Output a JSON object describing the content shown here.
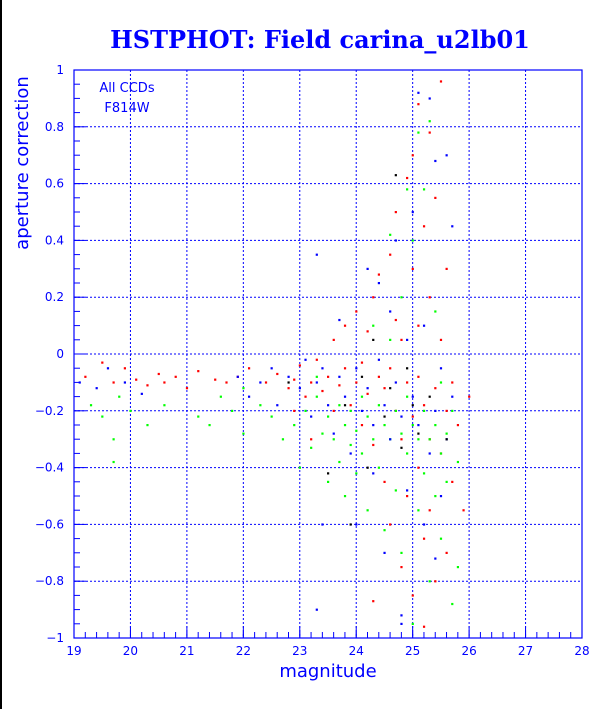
{
  "chart_data": {
    "type": "scatter",
    "title": "HSTPHOT: Field carina_u2lb01",
    "xlabel": "magnitude",
    "ylabel": "aperture correction",
    "xlim": [
      19,
      28
    ],
    "ylim": [
      -1,
      1
    ],
    "xticks": [
      "19",
      "20",
      "21",
      "22",
      "23",
      "24",
      "25",
      "26",
      "27",
      "28"
    ],
    "yticks": [
      "-1",
      "-0.8",
      "-0.6",
      "-0.4",
      "-0.2",
      "0",
      "0.2",
      "0.4",
      "0.6",
      "0.8",
      "1"
    ],
    "grid": true,
    "annotations": [
      "All CCDs",
      "F814W"
    ],
    "series": [
      {
        "name": "red",
        "color": "#ff0000",
        "points": [
          [
            19.2,
            -0.08
          ],
          [
            19.5,
            -0.03
          ],
          [
            19.7,
            -0.1
          ],
          [
            19.9,
            -0.05
          ],
          [
            20.1,
            -0.09
          ],
          [
            20.3,
            -0.11
          ],
          [
            20.5,
            -0.07
          ],
          [
            20.6,
            -0.1
          ],
          [
            20.8,
            -0.08
          ],
          [
            21.0,
            -0.12
          ],
          [
            21.2,
            -0.06
          ],
          [
            21.5,
            -0.09
          ],
          [
            21.7,
            -0.1
          ],
          [
            21.9,
            -0.08
          ],
          [
            22.1,
            -0.05
          ],
          [
            22.4,
            -0.1
          ],
          [
            22.6,
            -0.07
          ],
          [
            22.8,
            -0.12
          ],
          [
            22.9,
            -0.09
          ],
          [
            23.0,
            -0.04
          ],
          [
            23.1,
            -0.15
          ],
          [
            23.2,
            -0.1
          ],
          [
            23.3,
            -0.02
          ],
          [
            23.4,
            -0.13
          ],
          [
            23.5,
            -0.08
          ],
          [
            23.6,
            0.05
          ],
          [
            23.6,
            -0.2
          ],
          [
            23.7,
            -0.11
          ],
          [
            23.8,
            -0.05
          ],
          [
            23.8,
            0.1
          ],
          [
            23.9,
            -0.18
          ],
          [
            24.0,
            -0.1
          ],
          [
            24.0,
            0.15
          ],
          [
            24.1,
            -0.03
          ],
          [
            24.1,
            -0.25
          ],
          [
            24.2,
            0.08
          ],
          [
            24.2,
            -0.14
          ],
          [
            24.3,
            -0.32
          ],
          [
            24.3,
            0.2
          ],
          [
            24.4,
            -0.08
          ],
          [
            24.4,
            0.28
          ],
          [
            24.5,
            -0.45
          ],
          [
            24.5,
            -0.12
          ],
          [
            24.6,
            0.35
          ],
          [
            24.6,
            -0.6
          ],
          [
            24.6,
            -0.05
          ],
          [
            24.7,
            0.5
          ],
          [
            24.7,
            -0.2
          ],
          [
            24.7,
            0.12
          ],
          [
            24.8,
            -0.75
          ],
          [
            24.8,
            0.05
          ],
          [
            24.8,
            -0.3
          ],
          [
            24.9,
            0.62
          ],
          [
            24.9,
            -0.1
          ],
          [
            24.9,
            -0.5
          ],
          [
            25.0,
            0.3
          ],
          [
            25.0,
            -0.22
          ],
          [
            25.0,
            -0.85
          ],
          [
            25.0,
            0.7
          ],
          [
            25.1,
            0.1
          ],
          [
            25.1,
            -0.4
          ],
          [
            25.1,
            -0.08
          ],
          [
            25.1,
            0.88
          ],
          [
            25.2,
            -0.65
          ],
          [
            25.2,
            0.45
          ],
          [
            25.2,
            -0.18
          ],
          [
            25.2,
            -0.96
          ],
          [
            25.3,
            0.2
          ],
          [
            25.3,
            -0.3
          ],
          [
            25.3,
            -0.55
          ],
          [
            25.3,
            0.78
          ],
          [
            25.4,
            -0.12
          ],
          [
            25.4,
            0.55
          ],
          [
            25.4,
            -0.8
          ],
          [
            25.5,
            0.05
          ],
          [
            25.5,
            -0.35
          ],
          [
            25.5,
            0.96
          ],
          [
            25.6,
            -0.2
          ],
          [
            25.6,
            -0.7
          ],
          [
            25.6,
            0.3
          ],
          [
            25.7,
            -0.1
          ],
          [
            25.7,
            -0.45
          ],
          [
            25.8,
            -0.25
          ],
          [
            25.9,
            -0.55
          ],
          [
            26.0,
            -0.15
          ],
          [
            24.3,
            -0.87
          ],
          [
            23.2,
            -0.3
          ],
          [
            22.9,
            -0.2
          ]
        ]
      },
      {
        "name": "green",
        "color": "#00ff00",
        "points": [
          [
            19.3,
            -0.18
          ],
          [
            19.5,
            -0.22
          ],
          [
            19.7,
            -0.3
          ],
          [
            19.7,
            -0.38
          ],
          [
            19.8,
            -0.15
          ],
          [
            20.0,
            -0.2
          ],
          [
            20.3,
            -0.25
          ],
          [
            20.6,
            -0.18
          ],
          [
            21.2,
            -0.22
          ],
          [
            21.4,
            -0.25
          ],
          [
            21.6,
            -0.15
          ],
          [
            21.8,
            -0.2
          ],
          [
            22.0,
            -0.28
          ],
          [
            22.3,
            -0.18
          ],
          [
            22.5,
            -0.22
          ],
          [
            22.7,
            -0.3
          ],
          [
            22.9,
            -0.25
          ],
          [
            23.0,
            -0.4
          ],
          [
            23.1,
            -0.2
          ],
          [
            23.2,
            -0.33
          ],
          [
            23.3,
            -0.15
          ],
          [
            23.4,
            -0.28
          ],
          [
            23.5,
            -0.22
          ],
          [
            23.5,
            -0.45
          ],
          [
            23.6,
            -0.3
          ],
          [
            23.7,
            -0.18
          ],
          [
            23.7,
            -0.38
          ],
          [
            23.8,
            -0.25
          ],
          [
            23.8,
            -0.5
          ],
          [
            23.9,
            -0.2
          ],
          [
            23.9,
            -0.32
          ],
          [
            24.0,
            -0.27
          ],
          [
            24.0,
            -0.42
          ],
          [
            24.1,
            -0.15
          ],
          [
            24.1,
            -0.35
          ],
          [
            24.2,
            -0.22
          ],
          [
            24.2,
            -0.55
          ],
          [
            24.3,
            -0.3
          ],
          [
            24.3,
            0.1
          ],
          [
            24.4,
            -0.18
          ],
          [
            24.4,
            -0.4
          ],
          [
            24.5,
            -0.25
          ],
          [
            24.5,
            -0.62
          ],
          [
            24.6,
            -0.3
          ],
          [
            24.6,
            0.05
          ],
          [
            24.7,
            -0.2
          ],
          [
            24.7,
            -0.48
          ],
          [
            24.8,
            -0.28
          ],
          [
            24.8,
            -0.7
          ],
          [
            24.8,
            0.2
          ],
          [
            24.9,
            -0.35
          ],
          [
            24.9,
            -0.15
          ],
          [
            25.0,
            -0.25
          ],
          [
            25.0,
            -0.95
          ],
          [
            25.0,
            0.4
          ],
          [
            25.1,
            -0.3
          ],
          [
            25.1,
            -0.55
          ],
          [
            25.1,
            0.78
          ],
          [
            25.2,
            -0.2
          ],
          [
            25.2,
            -0.42
          ],
          [
            25.2,
            0.58
          ],
          [
            25.3,
            -0.3
          ],
          [
            25.3,
            -0.8
          ],
          [
            25.3,
            0.82
          ],
          [
            25.4,
            -0.25
          ],
          [
            25.4,
            -0.5
          ],
          [
            25.4,
            0.15
          ],
          [
            25.5,
            -0.35
          ],
          [
            25.5,
            -0.65
          ],
          [
            25.5,
            -0.1
          ],
          [
            25.6,
            -0.28
          ],
          [
            25.6,
            -0.45
          ],
          [
            25.7,
            -0.88
          ],
          [
            25.7,
            -0.2
          ],
          [
            25.8,
            -0.38
          ],
          [
            25.8,
            -0.75
          ],
          [
            24.6,
            0.42
          ],
          [
            24.9,
            0.58
          ],
          [
            23.3,
            -0.08
          ],
          [
            22.0,
            -0.12
          ]
        ]
      },
      {
        "name": "blue",
        "color": "#0000ff",
        "points": [
          [
            19.1,
            -0.1
          ],
          [
            19.4,
            -0.12
          ],
          [
            19.6,
            -0.05
          ],
          [
            19.9,
            -0.1
          ],
          [
            20.2,
            -0.14
          ],
          [
            21.9,
            -0.08
          ],
          [
            22.1,
            -0.15
          ],
          [
            22.3,
            -0.1
          ],
          [
            22.5,
            -0.05
          ],
          [
            22.6,
            -0.18
          ],
          [
            22.8,
            -0.08
          ],
          [
            23.0,
            -0.12
          ],
          [
            23.1,
            -0.02
          ],
          [
            23.2,
            -0.22
          ],
          [
            23.3,
            -0.1
          ],
          [
            23.3,
            0.35
          ],
          [
            23.4,
            -0.05
          ],
          [
            23.5,
            -0.18
          ],
          [
            23.6,
            -0.28
          ],
          [
            23.7,
            -0.08
          ],
          [
            23.7,
            0.12
          ],
          [
            23.8,
            -0.15
          ],
          [
            23.9,
            -0.35
          ],
          [
            24.0,
            -0.05
          ],
          [
            24.0,
            -0.6
          ],
          [
            24.1,
            -0.2
          ],
          [
            24.2,
            0.3
          ],
          [
            24.2,
            -0.12
          ],
          [
            24.3,
            -0.42
          ],
          [
            24.4,
            -0.02
          ],
          [
            24.4,
            0.25
          ],
          [
            24.5,
            -0.18
          ],
          [
            24.5,
            -0.7
          ],
          [
            24.6,
            0.15
          ],
          [
            24.6,
            -0.3
          ],
          [
            24.7,
            -0.1
          ],
          [
            24.7,
            0.4
          ],
          [
            24.8,
            -0.22
          ],
          [
            24.8,
            -0.92
          ],
          [
            24.9,
            0.05
          ],
          [
            24.9,
            -0.48
          ],
          [
            25.0,
            -0.15
          ],
          [
            25.0,
            0.5
          ],
          [
            25.1,
            -0.25
          ],
          [
            25.1,
            0.92
          ],
          [
            25.2,
            -0.6
          ],
          [
            25.2,
            0.1
          ],
          [
            25.3,
            -0.35
          ],
          [
            25.3,
            0.9
          ],
          [
            25.4,
            -0.2
          ],
          [
            25.4,
            0.68
          ],
          [
            25.5,
            -0.05
          ],
          [
            25.5,
            -0.5
          ],
          [
            25.6,
            0.7
          ],
          [
            25.6,
            -0.3
          ],
          [
            25.7,
            -0.15
          ],
          [
            25.7,
            0.45
          ],
          [
            23.4,
            -0.6
          ],
          [
            23.3,
            -0.9
          ],
          [
            24.8,
            -0.95
          ],
          [
            25.4,
            -0.72
          ],
          [
            24.3,
            -0.25
          ]
        ]
      },
      {
        "name": "black",
        "color": "#000000",
        "points": [
          [
            23.8,
            -0.18
          ],
          [
            24.1,
            -0.08
          ],
          [
            24.2,
            -0.4
          ],
          [
            24.5,
            -0.22
          ],
          [
            24.7,
            0.63
          ],
          [
            24.8,
            -0.33
          ],
          [
            24.9,
            -0.05
          ],
          [
            25.0,
            -0.18
          ],
          [
            25.1,
            -0.28
          ],
          [
            24.3,
            0.05
          ],
          [
            23.5,
            -0.42
          ],
          [
            22.8,
            -0.1
          ],
          [
            25.3,
            -0.15
          ],
          [
            24.6,
            -0.12
          ],
          [
            23.9,
            -0.6
          ],
          [
            25.6,
            -0.3
          ]
        ]
      }
    ]
  }
}
